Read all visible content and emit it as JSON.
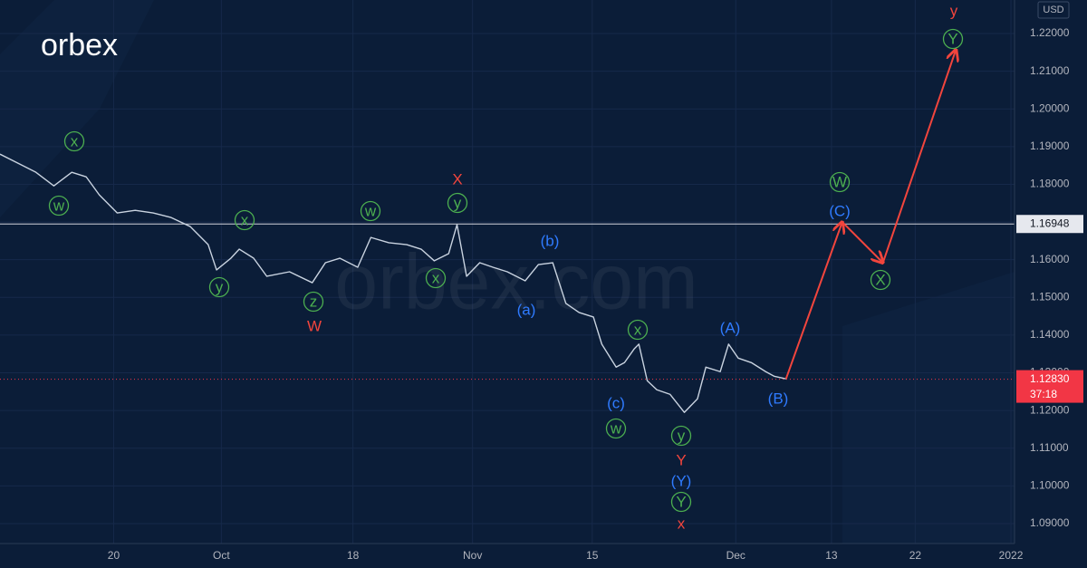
{
  "chart_data": {
    "type": "line",
    "logo": "orbex",
    "watermark": "orbex.com",
    "currency": "USD",
    "xlim": [
      -9.5,
      75.3
    ],
    "ylim": [
      1.0847,
      1.2289
    ],
    "xticks": [
      {
        "value": 0,
        "label": "20"
      },
      {
        "value": 9,
        "label": "Oct"
      },
      {
        "value": 20,
        "label": "18"
      },
      {
        "value": 30,
        "label": "Nov"
      },
      {
        "value": 40,
        "label": "15"
      },
      {
        "value": 52,
        "label": "Dec"
      },
      {
        "value": 60,
        "label": "13"
      },
      {
        "value": 67,
        "label": "22"
      },
      {
        "value": 75,
        "label": "2022"
      }
    ],
    "yticks": [
      {
        "value": 1.22,
        "label": "1.22000"
      },
      {
        "value": 1.21,
        "label": "1.21000"
      },
      {
        "value": 1.2,
        "label": "1.20000"
      },
      {
        "value": 1.19,
        "label": "1.19000"
      },
      {
        "value": 1.18,
        "label": "1.18000"
      },
      {
        "value": 1.17,
        "label": "1.17000"
      },
      {
        "value": 1.16,
        "label": "1.16000"
      },
      {
        "value": 1.15,
        "label": "1.15000"
      },
      {
        "value": 1.14,
        "label": "1.14000"
      },
      {
        "value": 1.13,
        "label": "1.13000"
      },
      {
        "value": 1.12,
        "label": "1.12000"
      },
      {
        "value": 1.11,
        "label": "1.11000"
      },
      {
        "value": 1.1,
        "label": "1.10000"
      },
      {
        "value": 1.09,
        "label": "1.09000"
      }
    ],
    "grid": true,
    "hline": 1.16948,
    "last_price": {
      "value": 1.1283,
      "label": "1.12830"
    },
    "countdown": "37:18",
    "series": [
      {
        "color": "#c9d3e0",
        "x": [
          -9.5,
          -8.0,
          -6.5,
          -5.0,
          -3.5,
          -2.3,
          -1.2,
          0.3,
          1.8,
          3.3,
          4.8,
          6.4,
          7.9,
          8.6,
          9.8,
          10.5,
          11.7,
          12.8,
          14.7,
          16.6,
          17.7,
          18.9,
          20.4,
          21.5,
          23.0,
          24.5,
          25.7,
          26.8,
          28.0,
          28.7,
          29.5,
          30.6,
          31.7,
          32.9,
          34.4,
          35.5,
          36.7,
          37.8,
          38.9,
          40.1,
          40.8,
          42.0,
          42.7,
          43.5,
          43.9,
          44.6,
          45.4,
          46.5,
          47.7,
          48.8,
          49.5,
          50.7,
          51.4,
          52.2,
          53.3,
          54.5,
          55.2,
          56.2
        ],
        "values": [
          1.188,
          1.1856,
          1.1832,
          1.1796,
          1.1832,
          1.182,
          1.1772,
          1.1724,
          1.1731,
          1.1724,
          1.1712,
          1.1688,
          1.164,
          1.1573,
          1.1604,
          1.1628,
          1.1604,
          1.1556,
          1.1568,
          1.1539,
          1.1592,
          1.1604,
          1.158,
          1.1659,
          1.1645,
          1.164,
          1.1628,
          1.1597,
          1.1616,
          1.1693,
          1.1556,
          1.1592,
          1.158,
          1.1568,
          1.1544,
          1.1587,
          1.1592,
          1.1484,
          1.146,
          1.1448,
          1.1376,
          1.1315,
          1.1327,
          1.1363,
          1.1376,
          1.1279,
          1.1255,
          1.1243,
          1.1195,
          1.1231,
          1.1315,
          1.1303,
          1.1376,
          1.1339,
          1.1327,
          1.1303,
          1.1291,
          1.1284
        ]
      },
      {
        "color": "#f2453d",
        "x": [
          56.2,
          60.9,
          64.3,
          70.4
        ],
        "values": [
          1.1284,
          1.17,
          1.1592,
          1.2157
        ]
      }
    ],
    "annotations": [
      "x",
      "w",
      "y",
      "x",
      "z",
      "W",
      "w",
      "x",
      "y",
      "X",
      "(b)",
      "(a)",
      "x",
      "(c)",
      "w",
      "(A)",
      "y",
      "Y",
      "(Y)",
      "Y",
      "x",
      "(B)",
      "W",
      "(C)",
      "X",
      "Y",
      "y"
    ]
  }
}
